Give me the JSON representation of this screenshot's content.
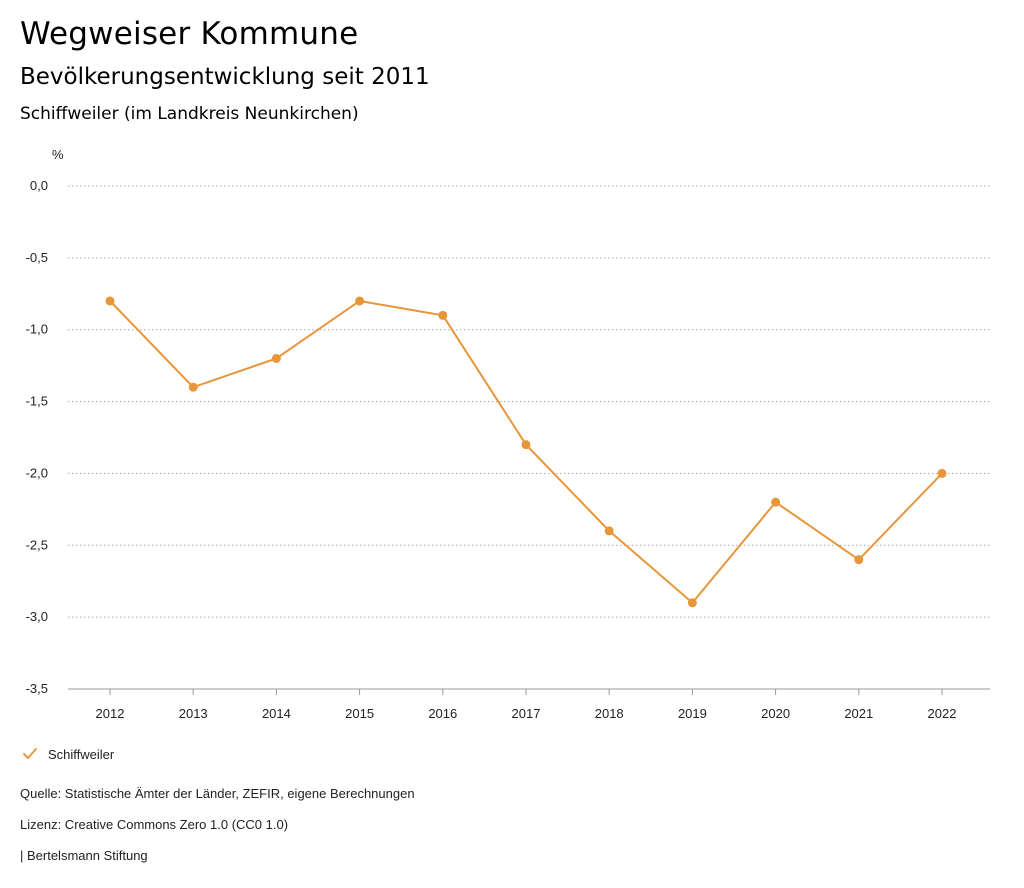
{
  "header": {
    "title": "Wegweiser Kommune",
    "subtitle": "Bevölkerungsentwicklung seit 2011",
    "region": "Schiffweiler (im Landkreis Neunkirchen)"
  },
  "chart_data": {
    "type": "line",
    "ylabel": "%",
    "xlabel": "",
    "x": [
      "2012",
      "2013",
      "2014",
      "2015",
      "2016",
      "2017",
      "2018",
      "2019",
      "2020",
      "2021",
      "2022"
    ],
    "series": [
      {
        "name": "Schiffweiler",
        "color": "#e8963a",
        "values": [
          -0.8,
          -1.4,
          -1.2,
          -0.8,
          -0.9,
          -1.8,
          -2.4,
          -2.9,
          -2.2,
          -2.6,
          -2.0
        ]
      }
    ],
    "ylim": [
      -3.5,
      0.0
    ],
    "yticks": [
      0.0,
      -0.5,
      -1.0,
      -1.5,
      -2.0,
      -2.5,
      -3.0,
      -3.5
    ],
    "ytick_labels": [
      "0,0",
      "-0,5",
      "-1,0",
      "-1,5",
      "-2,0",
      "-2,5",
      "-3,0",
      "-3,5"
    ],
    "grid": true,
    "legend_position": "bottom-left"
  },
  "legend": {
    "items": [
      {
        "label": "Schiffweiler",
        "icon": "check-icon",
        "color": "#e8963a"
      }
    ]
  },
  "footer": {
    "source": "Quelle: Statistische Ämter der Länder, ZEFIR, eigene Berechnungen",
    "license": "Lizenz: Creative Commons Zero 1.0 (CC0 1.0)",
    "publisher": "| Bertelsmann Stiftung"
  }
}
